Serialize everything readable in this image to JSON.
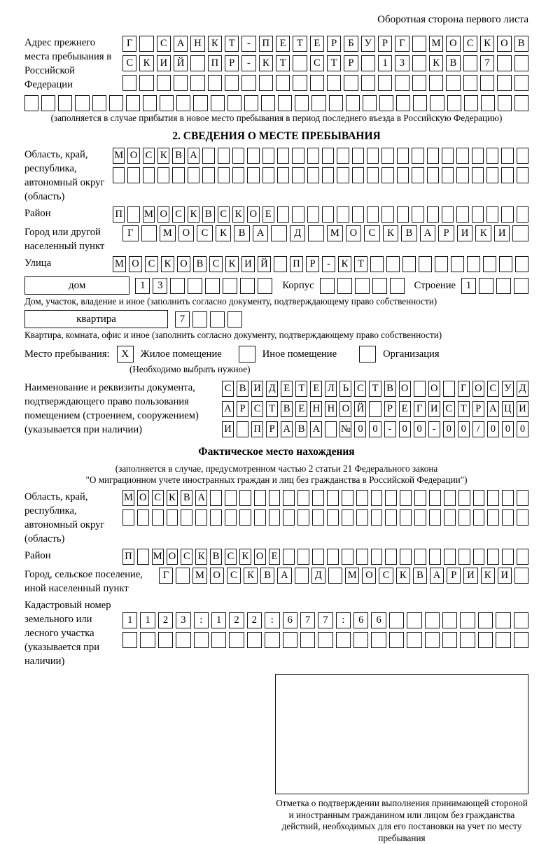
{
  "page": {
    "header_note": "Оборотная сторона первого листа",
    "ink_color": "#000000",
    "paper_color": "#ffffff"
  },
  "prev_address": {
    "label": "Адрес прежнего места пребывания в Российской Федерации",
    "rows": [
      {
        "len": 24,
        "text": "Г САНКТ-ПЕТЕРБУРГ МОСКОВ"
      },
      {
        "len": 24,
        "text": "СКИЙ ПР-КТ СТР 13 КВ 7"
      },
      {
        "len": 24,
        "text": ""
      }
    ],
    "full_row": {
      "len": 30,
      "text": ""
    },
    "caption": "(заполняется в случае прибытия в новое место пребывания в период последнего въезда в Российскую Федерацию)"
  },
  "section2": {
    "title": "2. СВЕДЕНИЯ О МЕСТЕ ПРЕБЫВАНИЯ",
    "oblast": {
      "label": "Область, край, республика, автономный округ (область)",
      "rows": [
        {
          "len": 28,
          "text": "МОСКВА"
        },
        {
          "len": 28,
          "text": ""
        }
      ]
    },
    "raion": {
      "label": "Район",
      "row": {
        "len": 28,
        "text": "П МОСКВСКОЕ"
      }
    },
    "gorod": {
      "label": "Город или другой населенный пункт",
      "row": {
        "len": 22,
        "text": "Г МОСКВА Д МОСКВАРИКИ"
      }
    },
    "ulitsa": {
      "label": "Улица",
      "row": {
        "len": 26,
        "text": "МОСКОВСКИЙ ПР-КТ"
      }
    },
    "dom": {
      "box_label": "дом",
      "cells": {
        "len": 8,
        "text": "13"
      },
      "korpus_label": "Корпус",
      "korpus_cells": {
        "len": 5,
        "text": ""
      },
      "stroenie_label": "Строение",
      "stroenie_cells": {
        "len": 4,
        "text": "1"
      },
      "caption": "Дом, участок, владение и иное (заполнить согласно документу, подтверждающему право собственности)"
    },
    "kvartira": {
      "box_label": "квартира",
      "cells": {
        "len": 4,
        "text": "7"
      },
      "caption": "Квартира, комната, офис и иное (заполнить согласно документу, подтверждающему право собственности)"
    },
    "mesto": {
      "label": "Место пребывания:",
      "options": [
        {
          "checked": "X",
          "label": "Жилое помещение"
        },
        {
          "checked": "",
          "label": "Иное помещение"
        },
        {
          "checked": "",
          "label": "Организация"
        }
      ],
      "caption": "(Необходимо выбрать нужное)"
    },
    "document": {
      "label": "Наименование и реквизиты документа, подтверждающего право пользования помещением (строением, сооружением) (указывается при наличии)",
      "rows": [
        {
          "len": 21,
          "text": "СВИДЕТЕЛЬСТВО О ГОСУД"
        },
        {
          "len": 21,
          "text": "АРСТВЕННОЙ РЕГИСТРАЦИ"
        },
        {
          "len": 21,
          "text": "И ПРАВА №00-00-00/000"
        }
      ]
    }
  },
  "factual": {
    "title": "Фактическое место нахождения",
    "note_line1": "(заполняется в случае, предусмотренном частью 2 статьи 21 Федерального закона",
    "note_line2": "\"О миграционном учете иностранных граждан и лиц без гражданства в Российской Федерации\")",
    "oblast": {
      "label": "Область, край, республика, автономный округ (область)",
      "rows": [
        {
          "len": 28,
          "text": "МОСКВА"
        },
        {
          "len": 28,
          "text": ""
        }
      ]
    },
    "raion": {
      "label": "Район",
      "row": {
        "len": 28,
        "text": "П МОСКВСКОЕ"
      }
    },
    "gorod": {
      "label": "Город, сельское поселение, иной населенный пункт",
      "row": {
        "len": 22,
        "text": "Г МОСКВА Д МОСКВАРИКИ"
      }
    },
    "kadastr": {
      "label": "Кадастровый номер земельного или лесного участка (указывается при наличии)",
      "rows": [
        {
          "len": 23,
          "text": "1123:122:677:66"
        },
        {
          "len": 23,
          "text": ""
        }
      ]
    },
    "stamp_caption": "Отметка о подтверждении выполнения принимающей стороной и иностранным гражданином или лицом без гражданства действий, необходимых для его постановки на учет по месту пребывания"
  }
}
